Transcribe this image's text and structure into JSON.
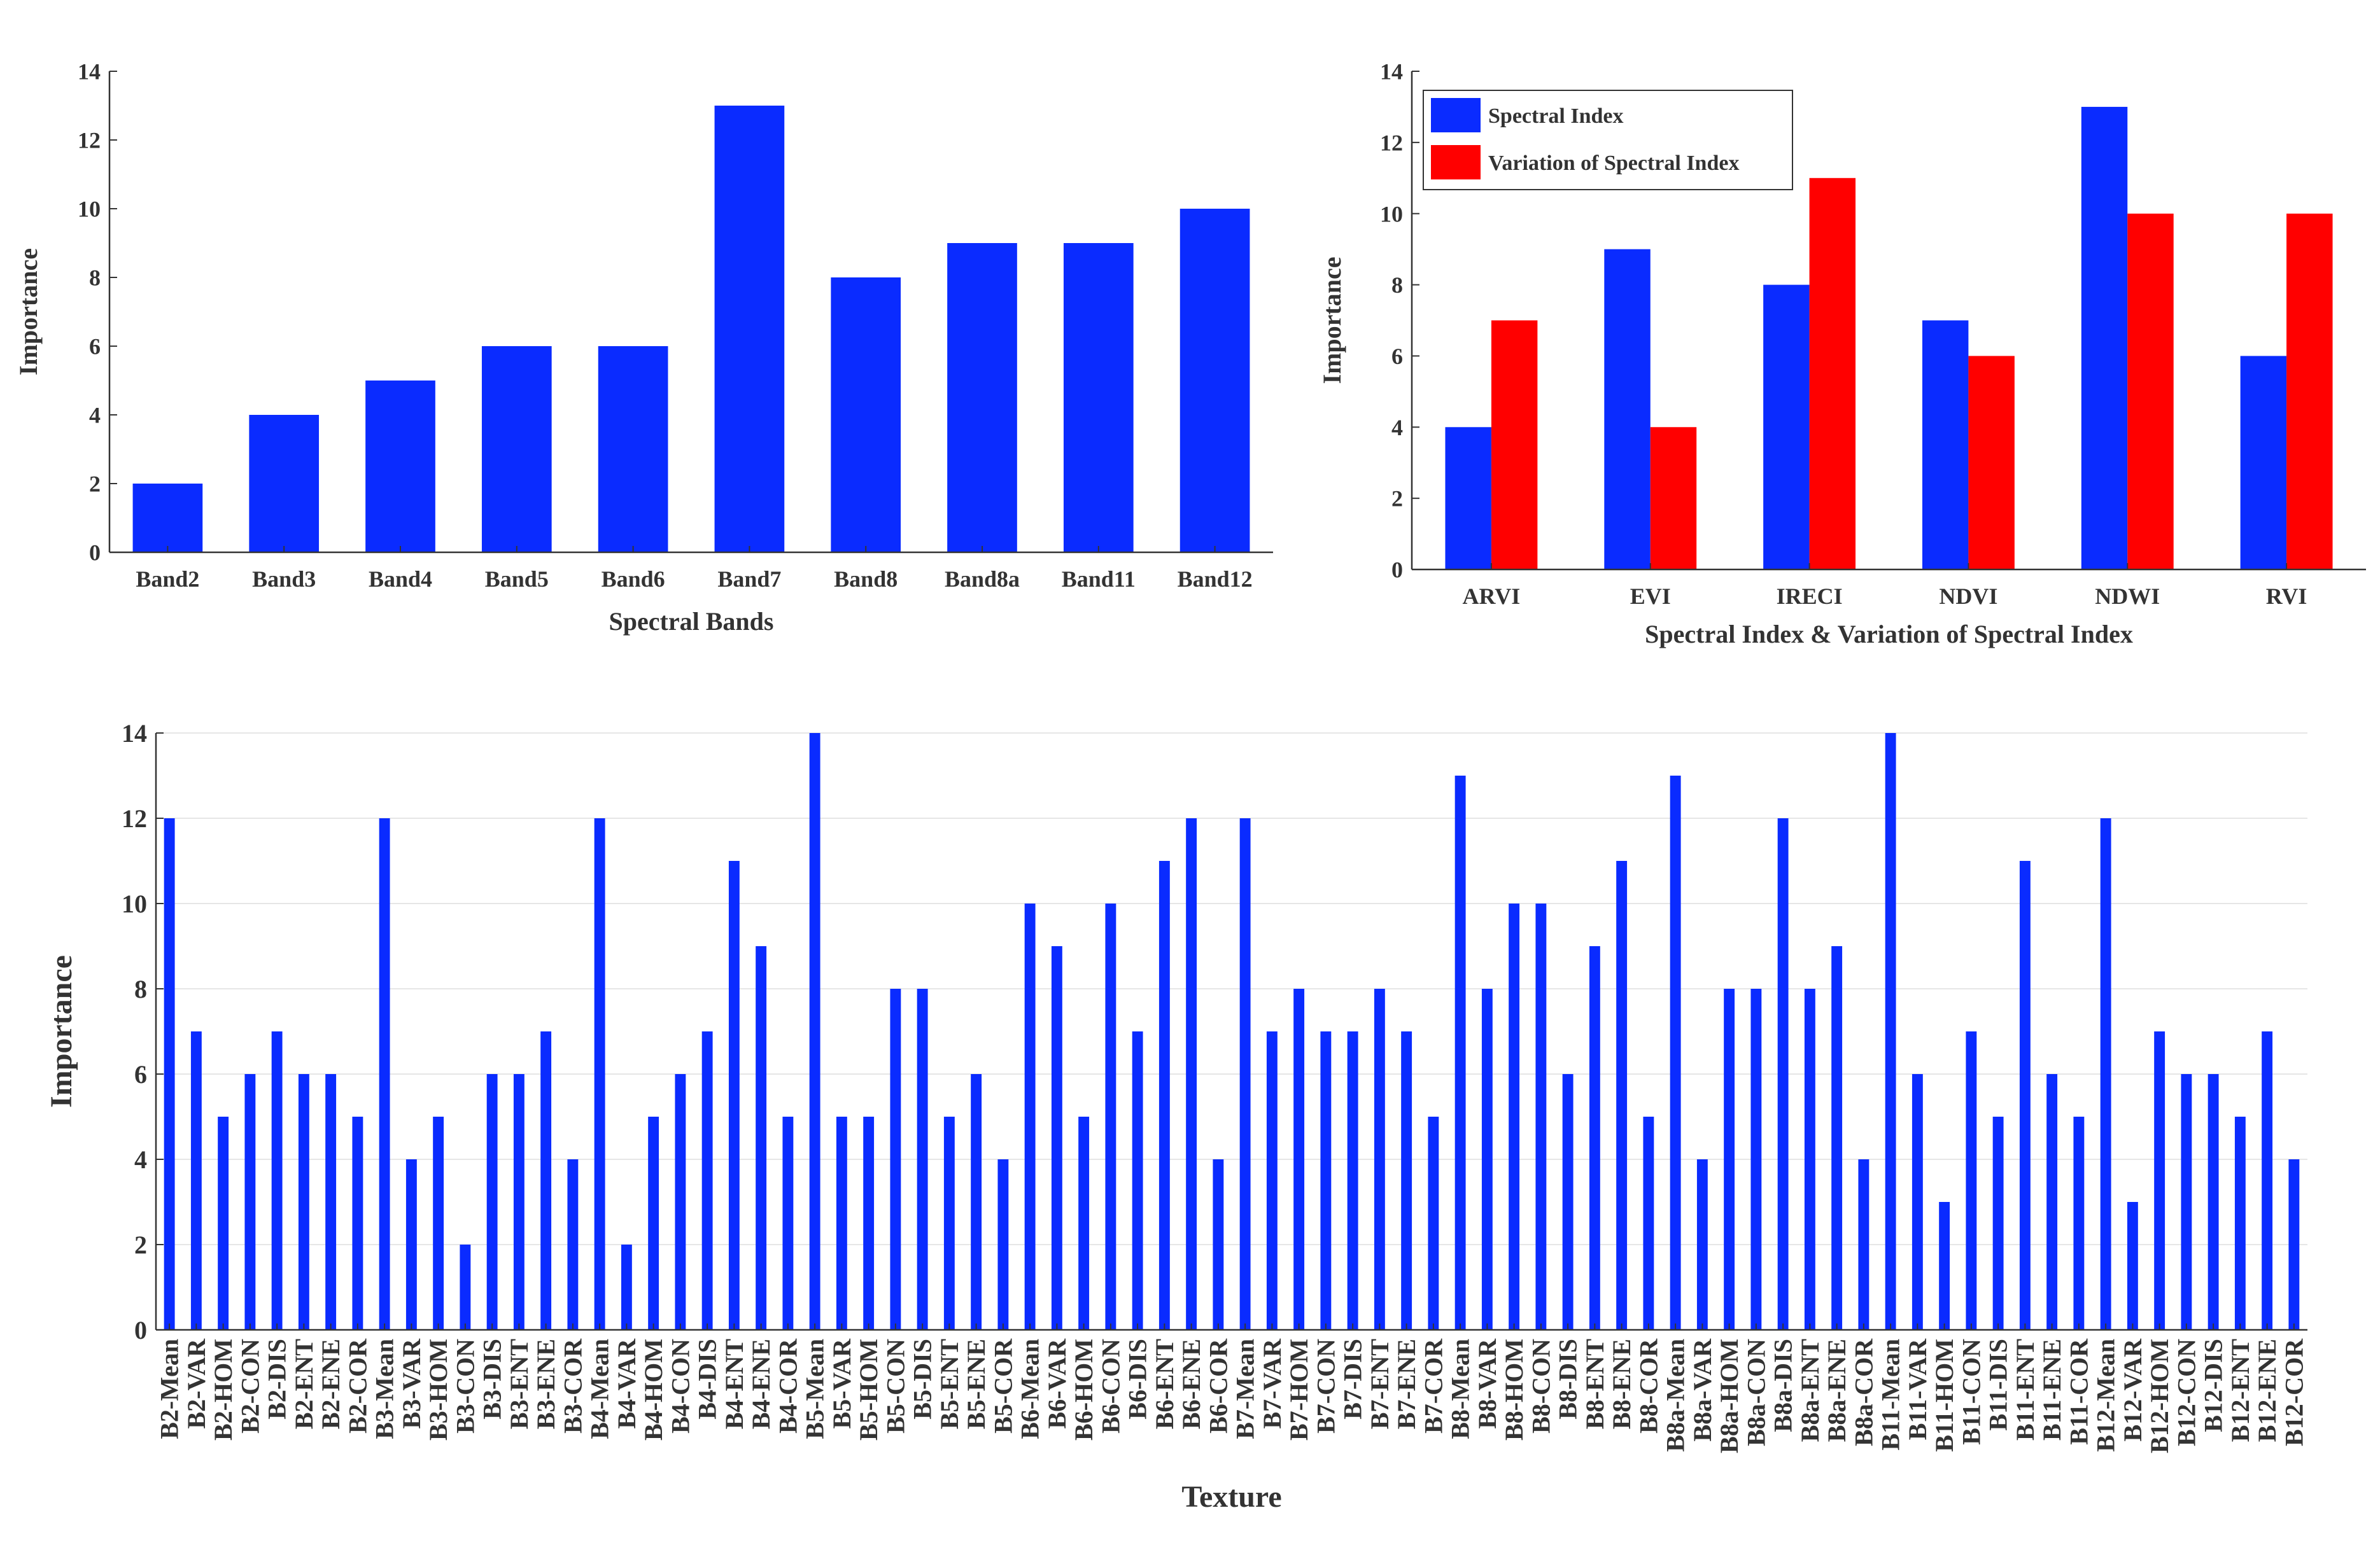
{
  "colors": {
    "blue": "#0a2bff",
    "red": "#ff0000",
    "axis": "#333333",
    "grid": "#e6e6e6"
  },
  "chart_data": [
    {
      "type": "bar",
      "title": "",
      "xlabel": "Spectral Bands",
      "ylabel": "Importance",
      "ylim": [
        0,
        14
      ],
      "yticks": [
        "0",
        "2",
        "4",
        "6",
        "8",
        "10",
        "12",
        "14"
      ],
      "categories": [
        "Band2",
        "Band3",
        "Band4",
        "Band5",
        "Band6",
        "Band7",
        "Band8",
        "Band8a",
        "Band11",
        "Band12"
      ],
      "series": [
        {
          "name": "Importance",
          "values": [
            2,
            4,
            5,
            6,
            6,
            13,
            8,
            9,
            9,
            10
          ]
        }
      ]
    },
    {
      "type": "bar",
      "title": "",
      "xlabel": "Spectral Index & Variation of Spectral Index",
      "ylabel": "Importance",
      "ylim": [
        0,
        14
      ],
      "yticks": [
        "0",
        "2",
        "4",
        "6",
        "8",
        "10",
        "12",
        "14"
      ],
      "legend_position": "top-left",
      "categories": [
        "ARVI",
        "EVI",
        "IRECI",
        "NDVI",
        "NDWI",
        "RVI"
      ],
      "series": [
        {
          "name": "Spectral Index",
          "values": [
            4,
            9,
            8,
            7,
            13,
            6
          ]
        },
        {
          "name": "Variation of  Spectral Index",
          "values": [
            7,
            4,
            11,
            6,
            10,
            10
          ]
        }
      ]
    },
    {
      "type": "bar",
      "title": "",
      "xlabel": "Texture",
      "ylabel": "Importance",
      "ylim": [
        0,
        14
      ],
      "yticks": [
        "0",
        "2",
        "4",
        "6",
        "8",
        "10",
        "12",
        "14"
      ],
      "grid": true,
      "categories": [
        "B2-Mean",
        "B2-VAR",
        "B2-HOM",
        "B2-CON",
        "B2-DIS",
        "B2-ENT",
        "B2-ENE",
        "B2-COR",
        "B3-Mean",
        "B3-VAR",
        "B3-HOM",
        "B3-CON",
        "B3-DIS",
        "B3-ENT",
        "B3-ENE",
        "B3-COR",
        "B4-Mean",
        "B4-VAR",
        "B4-HOM",
        "B4-CON",
        "B4-DIS",
        "B4-ENT",
        "B4-ENE",
        "B4-COR",
        "B5-Mean",
        "B5-VAR",
        "B5-HOM",
        "B5-CON",
        "B5-DIS",
        "B5-ENT",
        "B5-ENE",
        "B5-COR",
        "B6-Mean",
        "B6-VAR",
        "B6-HOM",
        "B6-CON",
        "B6-DIS",
        "B6-ENT",
        "B6-ENE",
        "B6-COR",
        "B7-Mean",
        "B7-VAR",
        "B7-HOM",
        "B7-CON",
        "B7-DIS",
        "B7-ENT",
        "B7-ENE",
        "B7-COR",
        "B8-Mean",
        "B8-VAR",
        "B8-HOM",
        "B8-CON",
        "B8-DIS",
        "B8-ENT",
        "B8-ENE",
        "B8-COR",
        "B8a-Mean",
        "B8a-VAR",
        "B8a-HOM",
        "B8a-CON",
        "B8a-DIS",
        "B8a-ENT",
        "B8a-ENE",
        "B8a-COR",
        "B11-Mean",
        "B11-VAR",
        "B11-HOM",
        "B11-CON",
        "B11-DIS",
        "B11-ENT",
        "B11-ENE",
        "B11-COR",
        "B12-Mean",
        "B12-VAR",
        "B12-HOM",
        "B12-CON",
        "B12-DIS",
        "B12-ENT",
        "B12-ENE",
        "B12-COR"
      ],
      "series": [
        {
          "name": "Importance",
          "values": [
            12,
            7,
            5,
            6,
            7,
            6,
            6,
            5,
            12,
            4,
            5,
            2,
            6,
            6,
            7,
            4,
            12,
            2,
            5,
            6,
            7,
            11,
            9,
            5,
            14,
            5,
            5,
            8,
            8,
            5,
            6,
            4,
            10,
            9,
            5,
            10,
            7,
            11,
            12,
            4,
            12,
            7,
            8,
            7,
            7,
            8,
            7,
            5,
            13,
            8,
            10,
            10,
            6,
            9,
            11,
            5,
            13,
            4,
            8,
            8,
            12,
            8,
            9,
            4,
            14,
            6,
            3,
            7,
            5,
            11,
            6,
            5,
            12,
            3,
            7,
            6,
            6,
            5,
            7,
            4
          ]
        }
      ]
    }
  ]
}
